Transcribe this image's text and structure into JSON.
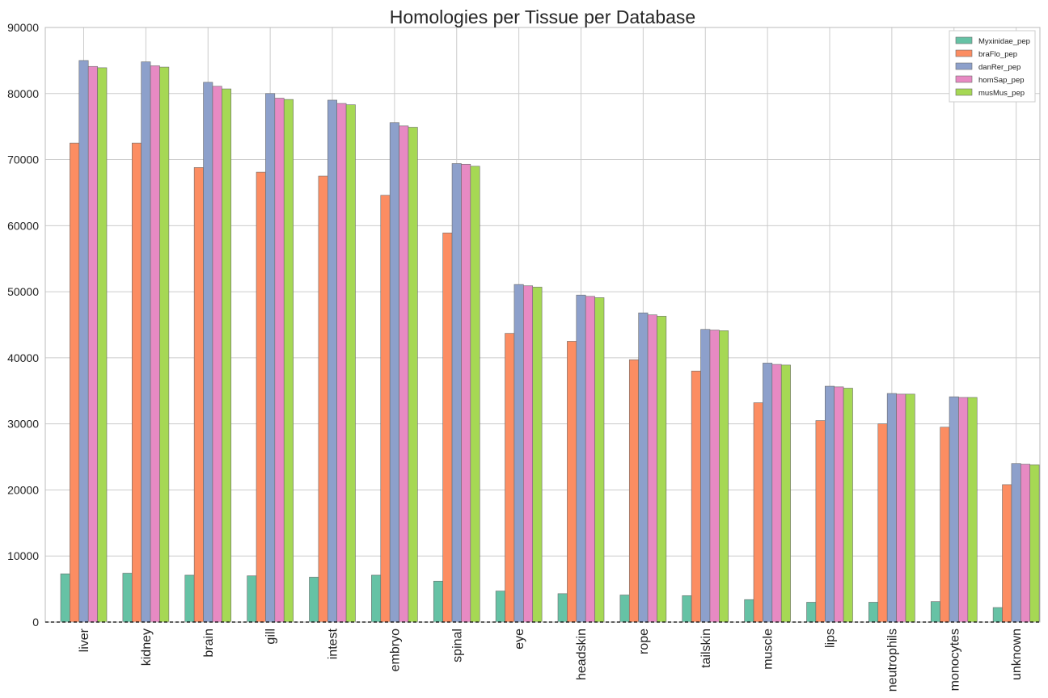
{
  "chart_data": {
    "type": "bar",
    "title": "Homologies per Tissue per Database",
    "xlabel": "",
    "ylabel": "",
    "ylim": [
      0,
      90000
    ],
    "yticks": [
      0,
      10000,
      20000,
      30000,
      40000,
      50000,
      60000,
      70000,
      80000,
      90000
    ],
    "grid": true,
    "legend_position": "top-right",
    "categories": [
      "liver",
      "kidney",
      "brain",
      "gill",
      "intest",
      "embryo",
      "spinal",
      "eye",
      "headskin",
      "rope",
      "tailskin",
      "muscle",
      "lips",
      "neutrophils",
      "monocytes",
      "unknown"
    ],
    "series": [
      {
        "name": "Myxinidae_pep",
        "color": "#66c2a5",
        "values": [
          7300,
          7400,
          7100,
          7000,
          6800,
          7100,
          6200,
          4700,
          4300,
          4100,
          4000,
          3400,
          3000,
          3000,
          3100,
          2200
        ]
      },
      {
        "name": "braFlo_pep",
        "color": "#fc8d62",
        "values": [
          72500,
          72500,
          68800,
          68100,
          67500,
          64600,
          58900,
          43700,
          42500,
          39700,
          38000,
          33200,
          30500,
          30000,
          29500,
          20800
        ]
      },
      {
        "name": "danRer_pep",
        "color": "#8da0cb",
        "values": [
          85000,
          84800,
          81700,
          80000,
          79000,
          75600,
          69400,
          51100,
          49500,
          46800,
          44300,
          39200,
          35700,
          34600,
          34100,
          24000
        ]
      },
      {
        "name": "homSap_pep",
        "color": "#e78ac3",
        "values": [
          84100,
          84200,
          81100,
          79300,
          78500,
          75100,
          69300,
          50900,
          49300,
          46500,
          44200,
          39000,
          35600,
          34500,
          34000,
          23900
        ]
      },
      {
        "name": "musMus_pep",
        "color": "#a6d854",
        "values": [
          83900,
          84000,
          80700,
          79100,
          78300,
          74900,
          69000,
          50700,
          49100,
          46300,
          44100,
          38900,
          35400,
          34500,
          34000,
          23800
        ]
      }
    ]
  }
}
